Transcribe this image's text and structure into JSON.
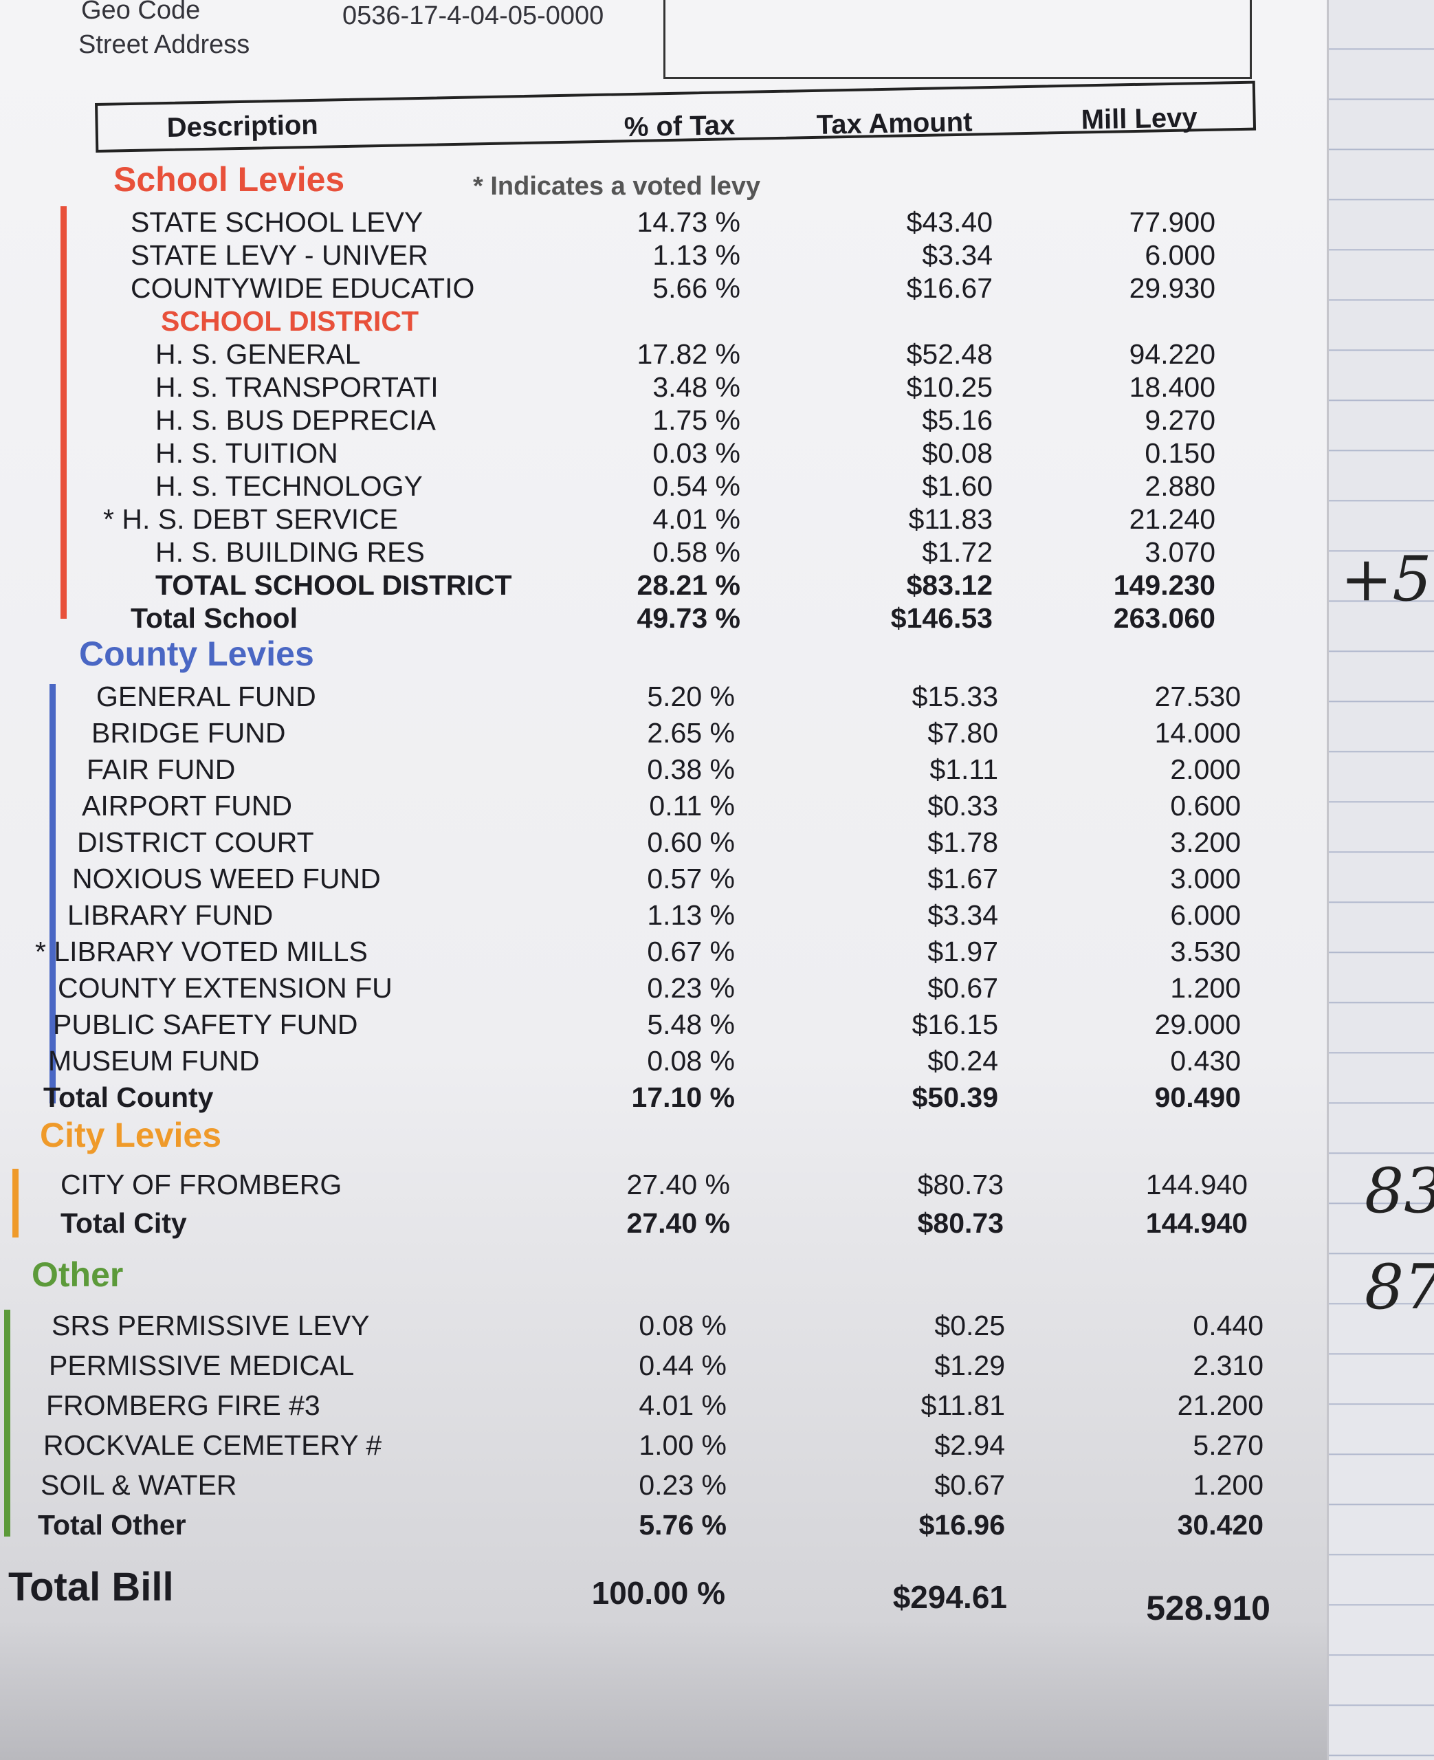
{
  "header": {
    "geo_code_label": "Geo Code",
    "geo_code": "0536-17-4-04-05-0000",
    "street_address_label": "Street Address"
  },
  "columns": {
    "description": "Description",
    "pct": "% of Tax",
    "tax": "Tax Amount",
    "mill": "Mill Levy"
  },
  "voted_note": "* Indicates a voted levy",
  "colors": {
    "school": "#e8503a",
    "county": "#4a67c4",
    "city": "#ef9a2a",
    "other": "#5c9a3a"
  },
  "sections": [
    {
      "key": "school",
      "title": "School Levies",
      "rows": [
        {
          "d": "STATE SCHOOL LEVY",
          "p": "14.73 %",
          "t": "$43.40",
          "m": "77.900"
        },
        {
          "d": "STATE LEVY - UNIVER",
          "p": "1.13 %",
          "t": "$3.34",
          "m": "6.000"
        },
        {
          "d": "COUNTYWIDE EDUCATIO",
          "p": "5.66 %",
          "t": "$16.67",
          "m": "29.930"
        },
        {
          "d": "SCHOOL DISTRICT",
          "p": "",
          "t": "",
          "m": "",
          "sub": true
        },
        {
          "d": "H. S. GENERAL",
          "p": "17.82 %",
          "t": "$52.48",
          "m": "94.220",
          "indent": true
        },
        {
          "d": "H. S. TRANSPORTATI",
          "p": "3.48 %",
          "t": "$10.25",
          "m": "18.400",
          "indent": true
        },
        {
          "d": "H. S. BUS DEPRECIA",
          "p": "1.75 %",
          "t": "$5.16",
          "m": "9.270",
          "indent": true
        },
        {
          "d": "H. S. TUITION",
          "p": "0.03 %",
          "t": "$0.08",
          "m": "0.150",
          "indent": true
        },
        {
          "d": "H. S. TECHNOLOGY",
          "p": "0.54 %",
          "t": "$1.60",
          "m": "2.880",
          "indent": true
        },
        {
          "d": "* H. S. DEBT SERVICE",
          "p": "4.01 %",
          "t": "$11.83",
          "m": "21.240",
          "voted": true
        },
        {
          "d": "H. S. BUILDING RES",
          "p": "0.58 %",
          "t": "$1.72",
          "m": "3.070",
          "indent": true
        },
        {
          "d": "TOTAL SCHOOL DISTRICT",
          "p": "28.21 %",
          "t": "$83.12",
          "m": "149.230",
          "bold": true,
          "indent": true
        },
        {
          "d": "Total School",
          "p": "49.73 %",
          "t": "$146.53",
          "m": "263.060",
          "bold": true
        }
      ]
    },
    {
      "key": "county",
      "title": "County Levies",
      "rows": [
        {
          "d": "GENERAL FUND",
          "p": "5.20 %",
          "t": "$15.33",
          "m": "27.530"
        },
        {
          "d": "BRIDGE FUND",
          "p": "2.65 %",
          "t": "$7.80",
          "m": "14.000"
        },
        {
          "d": "FAIR FUND",
          "p": "0.38 %",
          "t": "$1.11",
          "m": "2.000"
        },
        {
          "d": "AIRPORT FUND",
          "p": "0.11 %",
          "t": "$0.33",
          "m": "0.600"
        },
        {
          "d": "DISTRICT COURT",
          "p": "0.60 %",
          "t": "$1.78",
          "m": "3.200"
        },
        {
          "d": "NOXIOUS WEED FUND",
          "p": "0.57 %",
          "t": "$1.67",
          "m": "3.000"
        },
        {
          "d": "LIBRARY FUND",
          "p": "1.13 %",
          "t": "$3.34",
          "m": "6.000"
        },
        {
          "d": "* LIBRARY VOTED MILLS",
          "p": "0.67 %",
          "t": "$1.97",
          "m": "3.530",
          "voted": true
        },
        {
          "d": "COUNTY EXTENSION FU",
          "p": "0.23 %",
          "t": "$0.67",
          "m": "1.200"
        },
        {
          "d": "PUBLIC SAFETY FUND",
          "p": "5.48 %",
          "t": "$16.15",
          "m": "29.000"
        },
        {
          "d": "MUSEUM FUND",
          "p": "0.08 %",
          "t": "$0.24",
          "m": "0.430"
        },
        {
          "d": "Total County",
          "p": "17.10 %",
          "t": "$50.39",
          "m": "90.490",
          "bold": true
        }
      ]
    },
    {
      "key": "city",
      "title": "City Levies",
      "rows": [
        {
          "d": "CITY OF FROMBERG",
          "p": "27.40 %",
          "t": "$80.73",
          "m": "144.940"
        },
        {
          "d": "Total City",
          "p": "27.40 %",
          "t": "$80.73",
          "m": "144.940",
          "bold": true
        }
      ]
    },
    {
      "key": "other",
      "title": "Other",
      "rows": [
        {
          "d": "SRS PERMISSIVE LEVY",
          "p": "0.08 %",
          "t": "$0.25",
          "m": "0.440"
        },
        {
          "d": "PERMISSIVE MEDICAL",
          "p": "0.44 %",
          "t": "$1.29",
          "m": "2.310"
        },
        {
          "d": "FROMBERG FIRE #3",
          "p": "4.01 %",
          "t": "$11.81",
          "m": "21.200"
        },
        {
          "d": "ROCKVALE CEMETERY #",
          "p": "1.00 %",
          "t": "$2.94",
          "m": "5.270"
        },
        {
          "d": "SOIL & WATER",
          "p": "0.23 %",
          "t": "$0.67",
          "m": "1.200"
        },
        {
          "d": "Total Other",
          "p": "5.76 %",
          "t": "$16.96",
          "m": "30.420",
          "bold": true
        }
      ]
    }
  ],
  "total_bill": {
    "label": "Total Bill",
    "pct": "100.00 %",
    "tax": "$294.61",
    "mill": "528.910"
  },
  "handwritten": [
    "+5",
    "83",
    "87"
  ]
}
